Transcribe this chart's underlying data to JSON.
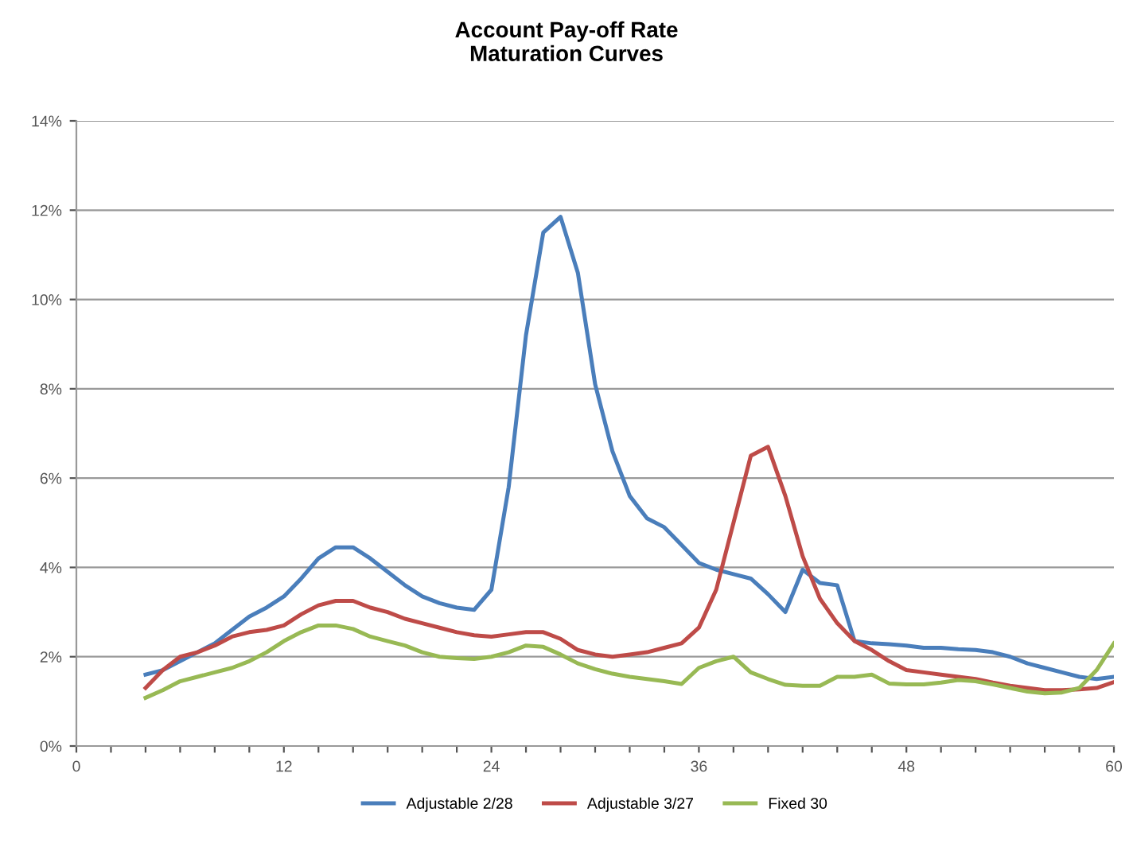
{
  "chart_data": {
    "type": "line",
    "title": "Account Pay-off Rate\nMaturation Curves",
    "x": [
      4,
      5,
      6,
      7,
      8,
      9,
      10,
      11,
      12,
      13,
      14,
      15,
      16,
      17,
      18,
      19,
      20,
      21,
      22,
      23,
      24,
      25,
      26,
      27,
      28,
      29,
      30,
      31,
      32,
      33,
      34,
      35,
      36,
      37,
      38,
      39,
      40,
      41,
      42,
      43,
      44,
      45,
      46,
      47,
      48,
      49,
      50,
      51,
      52,
      53,
      54,
      55,
      56,
      57,
      58,
      59,
      60
    ],
    "series": [
      {
        "name": "Adjustable 2/28",
        "color": "#4a7ebb",
        "values": [
          1.6,
          1.7,
          1.9,
          2.1,
          2.3,
          2.6,
          2.9,
          3.1,
          3.35,
          3.75,
          4.2,
          4.45,
          4.45,
          4.2,
          3.9,
          3.6,
          3.35,
          3.2,
          3.1,
          3.05,
          3.5,
          5.8,
          9.2,
          11.5,
          11.85,
          10.6,
          8.1,
          6.6,
          5.6,
          5.1,
          4.9,
          4.5,
          4.1,
          3.95,
          3.85,
          3.75,
          3.4,
          3.0,
          3.95,
          3.65,
          3.6,
          2.35,
          2.3,
          2.28,
          2.25,
          2.2,
          2.2,
          2.17,
          2.15,
          2.1,
          2.0,
          1.85,
          1.75,
          1.65,
          1.55,
          1.5,
          1.55
        ]
      },
      {
        "name": "Adjustable 3/27",
        "color": "#be4b48",
        "values": [
          1.3,
          1.7,
          2.0,
          2.1,
          2.25,
          2.45,
          2.55,
          2.6,
          2.7,
          2.95,
          3.15,
          3.25,
          3.25,
          3.1,
          3.0,
          2.85,
          2.75,
          2.65,
          2.55,
          2.48,
          2.45,
          2.5,
          2.55,
          2.55,
          2.4,
          2.15,
          2.05,
          2.0,
          2.05,
          2.1,
          2.2,
          2.3,
          2.65,
          3.5,
          5.0,
          6.5,
          6.7,
          5.6,
          4.25,
          3.3,
          2.75,
          2.35,
          2.15,
          1.9,
          1.7,
          1.65,
          1.6,
          1.55,
          1.5,
          1.42,
          1.35,
          1.3,
          1.25,
          1.25,
          1.27,
          1.3,
          1.43
        ]
      },
      {
        "name": "Fixed 30",
        "color": "#98b954",
        "values": [
          1.08,
          1.25,
          1.45,
          1.55,
          1.65,
          1.75,
          1.9,
          2.1,
          2.35,
          2.55,
          2.7,
          2.7,
          2.62,
          2.45,
          2.35,
          2.25,
          2.1,
          2.0,
          1.97,
          1.95,
          2.0,
          2.1,
          2.25,
          2.22,
          2.05,
          1.85,
          1.72,
          1.62,
          1.55,
          1.5,
          1.45,
          1.39,
          1.75,
          1.9,
          2.0,
          1.65,
          1.5,
          1.37,
          1.35,
          1.35,
          1.55,
          1.55,
          1.6,
          1.4,
          1.38,
          1.38,
          1.42,
          1.48,
          1.45,
          1.38,
          1.3,
          1.22,
          1.18,
          1.2,
          1.3,
          1.7,
          2.3
        ]
      }
    ],
    "xlim": [
      0,
      60
    ],
    "xticks": [
      0,
      {
        "value": 2,
        "label": null
      },
      {
        "value": 4,
        "label": null
      },
      {
        "value": 6,
        "label": null
      },
      {
        "value": 8,
        "label": null
      },
      {
        "value": 10,
        "label": null
      },
      12,
      {
        "value": 14,
        "label": null
      },
      {
        "value": 16,
        "label": null
      },
      {
        "value": 18,
        "label": null
      },
      {
        "value": 20,
        "label": null
      },
      {
        "value": 22,
        "label": null
      },
      24,
      {
        "value": 26,
        "label": null
      },
      {
        "value": 28,
        "label": null
      },
      {
        "value": 30,
        "label": null
      },
      {
        "value": 32,
        "label": null
      },
      {
        "value": 34,
        "label": null
      },
      36,
      {
        "value": 38,
        "label": null
      },
      {
        "value": 40,
        "label": null
      },
      {
        "value": 42,
        "label": null
      },
      {
        "value": 44,
        "label": null
      },
      {
        "value": 46,
        "label": null
      },
      48,
      {
        "value": 50,
        "label": null
      },
      {
        "value": 52,
        "label": null
      },
      {
        "value": 54,
        "label": null
      },
      {
        "value": 56,
        "label": null
      },
      {
        "value": 58,
        "label": null
      },
      60
    ],
    "ylim": [
      0,
      14
    ],
    "yticks": [
      {
        "value": 0,
        "label": "0%"
      },
      {
        "value": 2,
        "label": "2%"
      },
      {
        "value": 4,
        "label": "4%"
      },
      {
        "value": 6,
        "label": "6%"
      },
      {
        "value": 8,
        "label": "8%"
      },
      {
        "value": 10,
        "label": "10%"
      },
      {
        "value": 12,
        "label": "12%"
      },
      {
        "value": 14,
        "label": "14%"
      }
    ],
    "grid": "y",
    "legend": "bottom",
    "marker": "none",
    "line_style": "solid"
  }
}
